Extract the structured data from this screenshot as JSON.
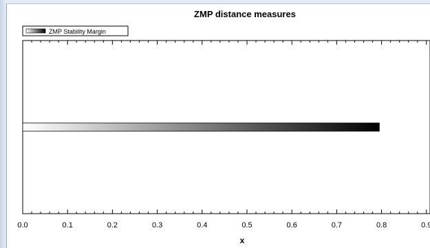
{
  "colors": {
    "window_frame": "#c9d6e8",
    "plot_border": "#000000",
    "bar_start": "#ffffff",
    "bar_end": "#000000"
  },
  "chart_data": {
    "type": "bar",
    "orientation": "horizontal",
    "title": "ZMP distance measures",
    "xlabel": "x",
    "ylabel": "",
    "xlim": [
      0.0,
      0.9
    ],
    "xticks": [
      0.0,
      0.1,
      0.2,
      0.3,
      0.4,
      0.5,
      0.6,
      0.7,
      0.8,
      0.9
    ],
    "xtick_labels": [
      "0.0",
      "0.1",
      "0.2",
      "0.3",
      "0.4",
      "0.5",
      "0.6",
      "0.7",
      "0.8",
      "0.9"
    ],
    "grid": false,
    "legend_position": "top-left",
    "series": [
      {
        "name": "ZMP Stability Margin",
        "values": [
          0.795
        ],
        "fill": "gradient white-to-black"
      }
    ]
  }
}
